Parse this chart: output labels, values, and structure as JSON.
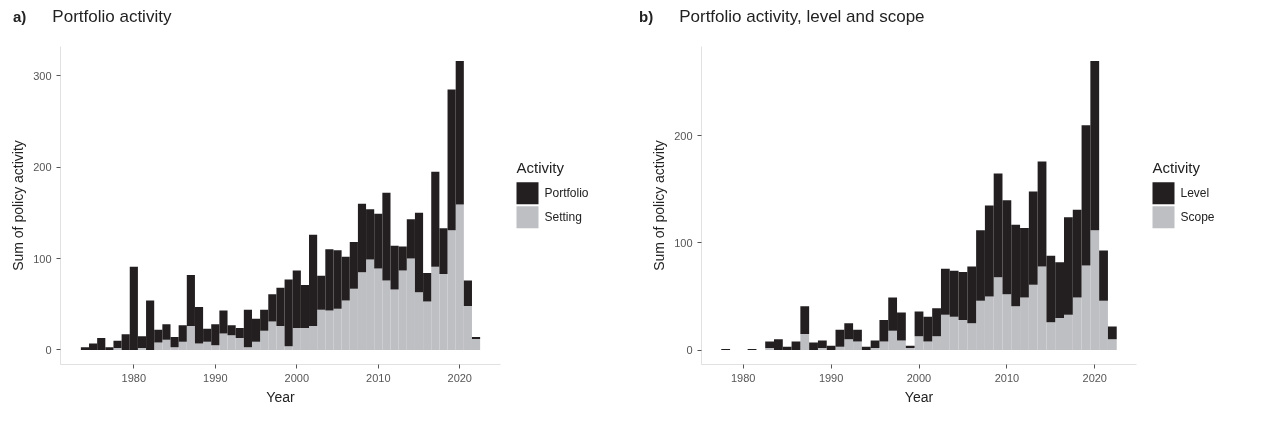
{
  "chart_data": [
    {
      "type": "bar",
      "stacked": true,
      "title": "Portfolio activity",
      "annotations": [
        "a)"
      ],
      "xlabel": "Year",
      "ylabel": "Sum of policy activity",
      "legend_title": "Activity",
      "legend": "right",
      "grid": false,
      "x": [
        1974,
        1975,
        1976,
        1977,
        1978,
        1979,
        1980,
        1981,
        1982,
        1983,
        1984,
        1985,
        1986,
        1987,
        1988,
        1989,
        1990,
        1991,
        1992,
        1993,
        1994,
        1995,
        1996,
        1997,
        1998,
        1999,
        2000,
        2001,
        2002,
        2003,
        2004,
        2005,
        2006,
        2007,
        2008,
        2009,
        2010,
        2011,
        2012,
        2013,
        2014,
        2015,
        2016,
        2017,
        2018,
        2019,
        2020,
        2021,
        2022
      ],
      "xlim": [
        1971,
        2025
      ],
      "xticks": [
        1980,
        1990,
        2000,
        2010,
        2020
      ],
      "ylim": [
        -16,
        332
      ],
      "yticks": [
        0,
        100,
        200,
        300
      ],
      "series": [
        {
          "name": "Setting",
          "color": "#bebfc3",
          "values": [
            0,
            0,
            0,
            0,
            2,
            0,
            0,
            2,
            0,
            8,
            11,
            3,
            9,
            26,
            7,
            9,
            5,
            18,
            16,
            13,
            3,
            9,
            21,
            31,
            26,
            4,
            24,
            24,
            26,
            44,
            43,
            45,
            54,
            67,
            85,
            99,
            89,
            76,
            66,
            87,
            100,
            63,
            53,
            91,
            83,
            131,
            159,
            48,
            12
          ]
        },
        {
          "name": "Portfolio",
          "color": "#231f20",
          "values": [
            3,
            7,
            13,
            3,
            8,
            17,
            91,
            13,
            54,
            14,
            17,
            11,
            18,
            56,
            40,
            14,
            23,
            25,
            11,
            11,
            41,
            25,
            23,
            30,
            42,
            73,
            63,
            47,
            100,
            37,
            67,
            64,
            48,
            51,
            75,
            55,
            60,
            96,
            48,
            26,
            43,
            87,
            31,
            104,
            50,
            154,
            157,
            28,
            2
          ]
        }
      ]
    },
    {
      "type": "bar",
      "stacked": true,
      "title": "Portfolio activity, level and scope",
      "annotations": [
        "b)"
      ],
      "xlabel": "Year",
      "ylabel": "Sum of policy activity",
      "legend_title": "Activity",
      "legend": "right",
      "grid": false,
      "x": [
        1978,
        1981,
        1983,
        1984,
        1985,
        1986,
        1987,
        1988,
        1989,
        1990,
        1991,
        1992,
        1993,
        1994,
        1995,
        1996,
        1997,
        1998,
        1999,
        2000,
        2001,
        2002,
        2003,
        2004,
        2005,
        2006,
        2007,
        2008,
        2009,
        2010,
        2011,
        2012,
        2013,
        2014,
        2015,
        2016,
        2017,
        2018,
        2019,
        2020,
        2021,
        2022
      ],
      "xlim": [
        1975.25,
        2024.75
      ],
      "xticks": [
        1980,
        1990,
        2000,
        2010,
        2020
      ],
      "ylim": [
        -13.5,
        283.5
      ],
      "yticks": [
        0,
        100,
        200
      ],
      "series": [
        {
          "name": "Scope",
          "color": "#bebfc3",
          "values": [
            0,
            0,
            2,
            0,
            0,
            0,
            15,
            0,
            2,
            0,
            3,
            10,
            8,
            0,
            2,
            8,
            18,
            9,
            2,
            13,
            8,
            13,
            33,
            31,
            28,
            25,
            46,
            50,
            68,
            52,
            41,
            49,
            61,
            78,
            26,
            30,
            33,
            49,
            79,
            112,
            46,
            10
          ]
        },
        {
          "name": "Level",
          "color": "#231f20",
          "values": [
            1,
            1,
            6,
            10,
            3,
            8,
            26,
            7,
            7,
            4,
            16,
            15,
            11,
            3,
            7,
            20,
            31,
            26,
            2,
            23,
            23,
            26,
            43,
            43,
            45,
            53,
            66,
            85,
            97,
            88,
            76,
            65,
            87,
            98,
            62,
            52,
            91,
            82,
            131,
            158,
            47,
            12
          ]
        }
      ]
    }
  ]
}
